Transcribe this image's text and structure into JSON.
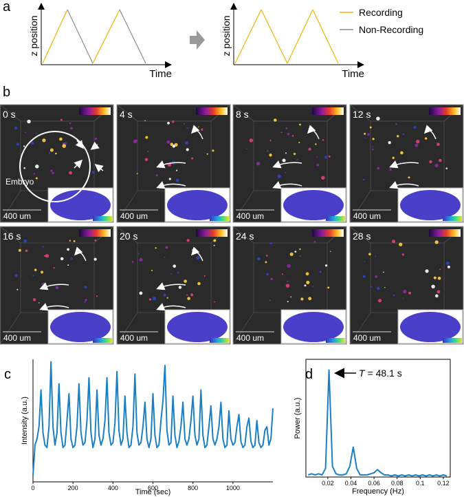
{
  "panels": [
    "a",
    "b",
    "c",
    "d"
  ],
  "schematic": {
    "y_label": "z position",
    "x_label": "Time",
    "legend": [
      {
        "name": "Recording",
        "color": "#f0b400"
      },
      {
        "name": "Non-Recording",
        "color": "#8c8c8c"
      }
    ]
  },
  "images": {
    "frames": [
      "0 s",
      "4 s",
      "8 s",
      "12 s",
      "16 s",
      "20 s",
      "24 s",
      "28 s"
    ],
    "scale_bar": "400 um",
    "embryo_label": "Embryo"
  },
  "chart_data": [
    {
      "type": "line",
      "x_label": "Time (sec)",
      "y_label": "Intensity (a.u.)",
      "color": "#1a7fc4",
      "xlim": [
        0,
        1200
      ],
      "xticks": [
        0,
        200,
        400,
        600,
        800,
        1000
      ],
      "ylim": [
        0,
        1
      ],
      "x": [
        0,
        10,
        20,
        30,
        40,
        50,
        60,
        70,
        80,
        90,
        100,
        110,
        120,
        130,
        140,
        150,
        160,
        170,
        180,
        190,
        200,
        210,
        220,
        230,
        240,
        250,
        260,
        270,
        280,
        290,
        300,
        310,
        320,
        330,
        340,
        350,
        360,
        370,
        380,
        390,
        400,
        410,
        420,
        430,
        440,
        450,
        460,
        470,
        480,
        490,
        500,
        510,
        520,
        530,
        540,
        550,
        560,
        570,
        580,
        590,
        600,
        610,
        620,
        630,
        640,
        650,
        660,
        670,
        680,
        690,
        700,
        710,
        720,
        730,
        740,
        750,
        760,
        770,
        780,
        790,
        800,
        810,
        820,
        830,
        840,
        850,
        860,
        870,
        880,
        890,
        900,
        910,
        920,
        930,
        940,
        950,
        960,
        970,
        980,
        990,
        1000,
        1010,
        1020,
        1030,
        1040,
        1050,
        1060,
        1070,
        1080,
        1090,
        1100,
        1110,
        1120,
        1130,
        1140,
        1150,
        1160,
        1170,
        1180,
        1190,
        1200
      ],
      "values": [
        0.05,
        0.3,
        0.35,
        0.45,
        0.75,
        0.4,
        0.3,
        0.28,
        0.45,
        0.98,
        0.45,
        0.3,
        0.4,
        0.8,
        0.4,
        0.28,
        0.3,
        0.5,
        0.72,
        0.35,
        0.28,
        0.3,
        0.45,
        0.8,
        0.4,
        0.3,
        0.32,
        0.5,
        0.85,
        0.4,
        0.28,
        0.35,
        0.75,
        0.38,
        0.3,
        0.35,
        0.5,
        0.85,
        0.4,
        0.3,
        0.32,
        0.48,
        0.9,
        0.42,
        0.3,
        0.35,
        0.7,
        0.4,
        0.28,
        0.3,
        0.45,
        0.88,
        0.4,
        0.3,
        0.32,
        0.45,
        0.65,
        0.35,
        0.28,
        0.35,
        0.72,
        0.38,
        0.28,
        0.3,
        0.5,
        0.66,
        0.95,
        0.42,
        0.3,
        0.32,
        0.7,
        0.38,
        0.28,
        0.33,
        0.45,
        0.65,
        0.35,
        0.3,
        0.35,
        0.5,
        0.7,
        0.38,
        0.3,
        0.35,
        0.75,
        0.38,
        0.28,
        0.3,
        0.45,
        0.62,
        0.35,
        0.3,
        0.35,
        0.45,
        0.65,
        0.35,
        0.28,
        0.3,
        0.58,
        0.35,
        0.3,
        0.32,
        0.45,
        0.55,
        0.33,
        0.28,
        0.3,
        0.45,
        0.52,
        0.33,
        0.28,
        0.3,
        0.5,
        0.32,
        0.28,
        0.3,
        0.42,
        0.45,
        0.3,
        0.35,
        0.6
      ]
    },
    {
      "type": "line",
      "x_label": "Frequency (Hz)",
      "y_label": "Power (a.u.)",
      "color": "#1a7fc4",
      "xlim": [
        0.001,
        0.126
      ],
      "xticks": [
        0.02,
        0.04,
        0.06,
        0.08,
        0.1,
        0.12
      ],
      "ylim": [
        0,
        1.1
      ],
      "annotation": {
        "symbol": "T",
        "text": "= 48.1 s"
      },
      "x": [
        0.003,
        0.006,
        0.009,
        0.012,
        0.015,
        0.018,
        0.021,
        0.024,
        0.027,
        0.03,
        0.033,
        0.036,
        0.039,
        0.042,
        0.045,
        0.048,
        0.051,
        0.054,
        0.057,
        0.06,
        0.063,
        0.066,
        0.069,
        0.072,
        0.075,
        0.078,
        0.081,
        0.084,
        0.087,
        0.09,
        0.093,
        0.096,
        0.099,
        0.102,
        0.105,
        0.108,
        0.111,
        0.114,
        0.117,
        0.12,
        0.123
      ],
      "values": [
        0.02,
        0.03,
        0.02,
        0.03,
        0.02,
        0.08,
        1.0,
        0.1,
        0.03,
        0.02,
        0.02,
        0.03,
        0.1,
        0.28,
        0.08,
        0.02,
        0.02,
        0.02,
        0.03,
        0.04,
        0.07,
        0.04,
        0.02,
        0.02,
        0.01,
        0.02,
        0.01,
        0.02,
        0.01,
        0.02,
        0.01,
        0.02,
        0.01,
        0.02,
        0.01,
        0.02,
        0.01,
        0.02,
        0.01,
        0.02,
        0.01
      ]
    }
  ]
}
